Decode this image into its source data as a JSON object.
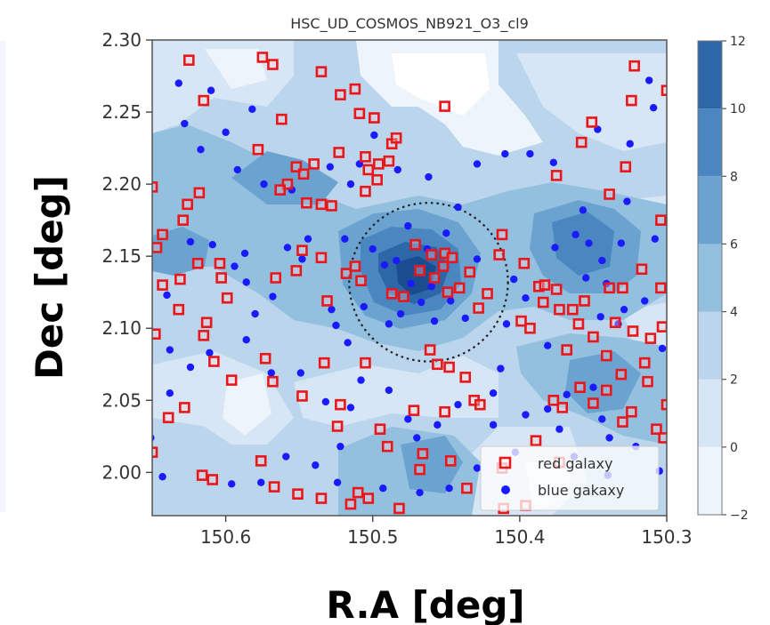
{
  "chart_data": {
    "type": "scatter",
    "title": "HSC_UD_COSMOS_NB921_O3_cl9",
    "xlabel": "R.A [deg]",
    "ylabel": "Dec [deg]",
    "xlim": [
      150.65,
      150.3
    ],
    "ylim": [
      1.97,
      2.3
    ],
    "x_ticks": [
      "150.6",
      "150.5",
      "150.4",
      "150.3"
    ],
    "y_ticks": [
      "2.30",
      "2.25",
      "2.20",
      "2.15",
      "2.10",
      "2.05",
      "2.00"
    ],
    "colorbar": {
      "ticks": [
        "12",
        "10",
        "8",
        "6",
        "4",
        "2",
        "0",
        "−2"
      ],
      "levels": [
        -2,
        0,
        2,
        4,
        6,
        8,
        10,
        12
      ],
      "colors": [
        "#eef4fb",
        "#d7e6f4",
        "#bad5ec",
        "#94c0e0",
        "#6ba3d0",
        "#4a86c0",
        "#2e67a8",
        "#1a4c8f"
      ]
    },
    "legend": {
      "placement": "lower-right",
      "entries": [
        "red galaxy",
        "blue gakaxy"
      ]
    },
    "circle": {
      "ra": 150.462,
      "dec": 2.132,
      "radius_deg": 0.055
    },
    "series": [
      {
        "name": "red galaxy",
        "marker": "square",
        "color": "#e8171c",
        "points": [
          [
            150.625,
            2.286
          ],
          [
            150.575,
            2.288
          ],
          [
            150.568,
            2.283
          ],
          [
            150.535,
            2.278
          ],
          [
            150.615,
            2.258
          ],
          [
            150.562,
            2.245
          ],
          [
            150.578,
            2.224
          ],
          [
            150.512,
            2.266
          ],
          [
            150.522,
            2.262
          ],
          [
            150.509,
            2.249
          ],
          [
            150.499,
            2.246
          ],
          [
            150.487,
            2.228
          ],
          [
            150.484,
            2.232
          ],
          [
            150.523,
            2.222
          ],
          [
            150.505,
            2.219
          ],
          [
            150.496,
            2.214
          ],
          [
            150.489,
            2.216
          ],
          [
            150.503,
            2.21
          ],
          [
            150.497,
            2.203
          ],
          [
            150.505,
            2.195
          ],
          [
            150.552,
            2.212
          ],
          [
            150.547,
            2.207
          ],
          [
            150.54,
            2.214
          ],
          [
            150.558,
            2.2
          ],
          [
            150.563,
            2.196
          ],
          [
            150.545,
            2.187
          ],
          [
            150.535,
            2.186
          ],
          [
            150.528,
            2.185
          ],
          [
            150.618,
            2.194
          ],
          [
            150.626,
            2.186
          ],
          [
            150.65,
            2.198
          ],
          [
            150.629,
            2.175
          ],
          [
            150.643,
            2.165
          ],
          [
            150.647,
            2.156
          ],
          [
            150.619,
            2.145
          ],
          [
            150.604,
            2.145
          ],
          [
            150.603,
            2.135
          ],
          [
            150.631,
            2.134
          ],
          [
            150.643,
            2.13
          ],
          [
            150.599,
            2.121
          ],
          [
            150.566,
            2.135
          ],
          [
            150.552,
            2.14
          ],
          [
            150.531,
            2.119
          ],
          [
            150.535,
            2.149
          ],
          [
            150.548,
            2.154
          ],
          [
            150.518,
            2.138
          ],
          [
            150.512,
            2.143
          ],
          [
            150.508,
            2.133
          ],
          [
            150.487,
            2.124
          ],
          [
            150.479,
            2.122
          ],
          [
            150.471,
            2.158
          ],
          [
            150.46,
            2.151
          ],
          [
            150.451,
            2.152
          ],
          [
            150.446,
            2.149
          ],
          [
            150.468,
            2.14
          ],
          [
            150.458,
            2.135
          ],
          [
            150.452,
            2.143
          ],
          [
            150.441,
            2.128
          ],
          [
            150.434,
            2.139
          ],
          [
            150.422,
            2.124
          ],
          [
            150.449,
            2.125
          ],
          [
            150.428,
            2.114
          ],
          [
            150.613,
            2.104
          ],
          [
            150.615,
            2.095
          ],
          [
            150.648,
            2.096
          ],
          [
            150.608,
            2.077
          ],
          [
            150.596,
            2.064
          ],
          [
            150.573,
            2.079
          ],
          [
            150.568,
            2.063
          ],
          [
            150.533,
            2.076
          ],
          [
            150.548,
            2.053
          ],
          [
            150.505,
            2.076
          ],
          [
            150.461,
            2.085
          ],
          [
            150.456,
            2.075
          ],
          [
            150.448,
            2.073
          ],
          [
            150.437,
            2.066
          ],
          [
            150.451,
            2.042
          ],
          [
            150.472,
            2.043
          ],
          [
            150.431,
            2.05
          ],
          [
            150.495,
            2.03
          ],
          [
            150.522,
            2.047
          ],
          [
            150.524,
            2.032
          ],
          [
            150.49,
            2.018
          ],
          [
            150.466,
            2.013
          ],
          [
            150.468,
            2.002
          ],
          [
            150.447,
            2.008
          ],
          [
            150.436,
            1.989
          ],
          [
            150.412,
            2.003
          ],
          [
            150.427,
            2.047
          ],
          [
            150.399,
            2.105
          ],
          [
            150.393,
            2.1
          ],
          [
            150.387,
            2.129
          ],
          [
            150.383,
            2.13
          ],
          [
            150.375,
            2.127
          ],
          [
            150.373,
            2.113
          ],
          [
            150.364,
            2.113
          ],
          [
            150.356,
            2.119
          ],
          [
            150.339,
            2.128
          ],
          [
            150.33,
            2.128
          ],
          [
            150.304,
            2.128
          ],
          [
            150.303,
            2.101
          ],
          [
            150.311,
            2.093
          ],
          [
            150.323,
            2.098
          ],
          [
            150.335,
            2.104
          ],
          [
            150.36,
            2.103
          ],
          [
            150.35,
            2.094
          ],
          [
            150.341,
            2.081
          ],
          [
            150.368,
            2.085
          ],
          [
            150.331,
            2.068
          ],
          [
            150.315,
            2.076
          ],
          [
            150.341,
            2.057
          ],
          [
            150.359,
            2.059
          ],
          [
            150.313,
            2.063
          ],
          [
            150.35,
            2.048
          ],
          [
            150.371,
            2.045
          ],
          [
            150.377,
            2.05
          ],
          [
            150.33,
            2.035
          ],
          [
            150.324,
            2.042
          ],
          [
            150.3,
            2.047
          ],
          [
            150.307,
            2.03
          ],
          [
            150.302,
            2.024
          ],
          [
            150.389,
            2.022
          ],
          [
            150.373,
            2.007
          ],
          [
            150.384,
            2.118
          ],
          [
            150.339,
            2.193
          ],
          [
            150.328,
            2.212
          ],
          [
            150.304,
            2.175
          ],
          [
            150.317,
            2.141
          ],
          [
            150.632,
            2.113
          ],
          [
            150.628,
            2.045
          ],
          [
            150.639,
            2.038
          ],
          [
            150.616,
            1.998
          ],
          [
            150.609,
            1.995
          ],
          [
            150.65,
            2.014
          ],
          [
            150.576,
            2.008
          ],
          [
            150.567,
            1.99
          ],
          [
            150.551,
            1.985
          ],
          [
            150.535,
            1.982
          ],
          [
            150.51,
            1.986
          ],
          [
            150.482,
            1.975
          ],
          [
            150.503,
            1.982
          ],
          [
            150.515,
            1.978
          ],
          [
            150.411,
            1.975
          ],
          [
            150.396,
            1.977
          ],
          [
            150.375,
            2.206
          ],
          [
            150.358,
            2.229
          ],
          [
            150.351,
            2.243
          ],
          [
            150.322,
            2.282
          ],
          [
            150.324,
            2.258
          ],
          [
            150.3,
            2.265
          ],
          [
            150.412,
            2.165
          ],
          [
            150.414,
            2.151
          ],
          [
            150.397,
            2.145
          ],
          [
            150.451,
            2.254
          ]
        ]
      },
      {
        "name": "blue gakaxy",
        "marker": "circle",
        "color": "#1a1aff",
        "points": [
          [
            150.632,
            2.27
          ],
          [
            150.61,
            2.265
          ],
          [
            150.628,
            2.242
          ],
          [
            150.582,
            2.252
          ],
          [
            150.6,
            2.236
          ],
          [
            150.617,
            2.224
          ],
          [
            150.592,
            2.21
          ],
          [
            150.574,
            2.2
          ],
          [
            150.555,
            2.196
          ],
          [
            150.529,
            2.212
          ],
          [
            150.515,
            2.2
          ],
          [
            150.483,
            2.21
          ],
          [
            150.462,
            2.205
          ],
          [
            150.442,
            2.184
          ],
          [
            150.499,
            2.234
          ],
          [
            150.509,
            2.214
          ],
          [
            150.544,
            2.162
          ],
          [
            150.519,
            2.162
          ],
          [
            150.484,
            2.147
          ],
          [
            150.492,
            2.144
          ],
          [
            150.5,
            2.155
          ],
          [
            150.463,
            2.155
          ],
          [
            150.474,
            2.131
          ],
          [
            150.46,
            2.129
          ],
          [
            150.467,
            2.118
          ],
          [
            150.481,
            2.11
          ],
          [
            150.458,
            2.105
          ],
          [
            150.447,
            2.119
          ],
          [
            150.437,
            2.107
          ],
          [
            150.489,
            2.103
          ],
          [
            150.506,
            2.115
          ],
          [
            150.528,
            2.113
          ],
          [
            150.548,
            2.148
          ],
          [
            150.587,
            2.152
          ],
          [
            150.609,
            2.158
          ],
          [
            150.624,
            2.16
          ],
          [
            150.64,
            2.123
          ],
          [
            150.594,
            2.143
          ],
          [
            150.586,
            2.132
          ],
          [
            150.58,
            2.11
          ],
          [
            150.586,
            2.092
          ],
          [
            150.611,
            2.083
          ],
          [
            150.569,
            2.069
          ],
          [
            150.549,
            2.069
          ],
          [
            150.515,
            2.045
          ],
          [
            150.508,
            2.064
          ],
          [
            150.489,
            2.057
          ],
          [
            150.476,
            2.037
          ],
          [
            150.47,
            2.024
          ],
          [
            150.456,
            2.033
          ],
          [
            150.442,
            2.047
          ],
          [
            150.418,
            2.055
          ],
          [
            150.418,
            2.033
          ],
          [
            150.396,
            2.04
          ],
          [
            150.381,
            2.044
          ],
          [
            150.368,
            2.054
          ],
          [
            150.35,
            2.059
          ],
          [
            150.344,
            2.037
          ],
          [
            150.339,
            2.024
          ],
          [
            150.321,
            2.018
          ],
          [
            150.413,
            2.072
          ],
          [
            150.409,
            2.103
          ],
          [
            150.396,
            2.121
          ],
          [
            150.376,
            2.156
          ],
          [
            150.353,
            2.159
          ],
          [
            150.344,
            2.147
          ],
          [
            150.331,
            2.159
          ],
          [
            150.308,
            2.162
          ],
          [
            150.327,
            2.188
          ],
          [
            150.357,
            2.182
          ],
          [
            150.362,
            2.165
          ],
          [
            150.347,
            2.238
          ],
          [
            150.325,
            2.228
          ],
          [
            150.309,
            2.253
          ],
          [
            150.312,
            2.272
          ],
          [
            150.377,
            2.215
          ],
          [
            150.393,
            2.221
          ],
          [
            150.41,
            2.221
          ],
          [
            150.429,
            2.214
          ],
          [
            150.532,
            2.049
          ],
          [
            150.522,
            2.018
          ],
          [
            150.539,
            2.005
          ],
          [
            150.524,
            1.993
          ],
          [
            150.559,
            2.011
          ],
          [
            150.576,
            1.993
          ],
          [
            150.596,
            1.992
          ],
          [
            150.643,
            1.997
          ],
          [
            150.651,
            2.024
          ],
          [
            150.638,
            2.055
          ],
          [
            150.624,
            2.073
          ],
          [
            150.638,
            2.085
          ],
          [
            150.493,
            1.989
          ],
          [
            150.468,
            1.986
          ],
          [
            150.448,
            1.989
          ],
          [
            150.429,
            2.003
          ],
          [
            150.403,
            2.014
          ],
          [
            150.373,
            2.03
          ],
          [
            150.363,
            2.011
          ],
          [
            150.34,
            1.998
          ],
          [
            150.305,
            2.001
          ],
          [
            150.381,
            2.088
          ],
          [
            150.345,
            2.108
          ],
          [
            150.329,
            2.113
          ],
          [
            150.315,
            2.119
          ],
          [
            150.341,
            2.131
          ],
          [
            150.355,
            2.135
          ],
          [
            150.333,
            2.103
          ],
          [
            150.303,
            2.086
          ],
          [
            150.404,
            2.134
          ],
          [
            150.429,
            2.148
          ],
          [
            150.45,
            2.166
          ],
          [
            150.476,
            2.171
          ],
          [
            150.558,
            2.156
          ],
          [
            150.568,
            2.122
          ],
          [
            150.525,
            2.102
          ],
          [
            150.517,
            2.09
          ]
        ]
      }
    ]
  }
}
